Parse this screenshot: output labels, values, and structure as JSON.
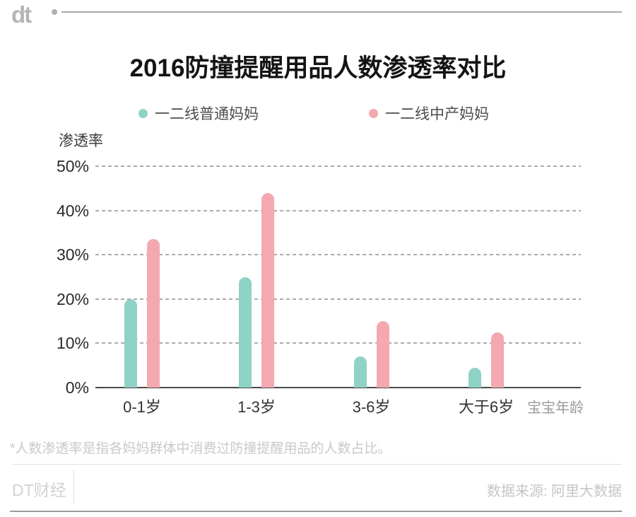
{
  "logo": {
    "text": "dt"
  },
  "title": "2016防撞提醒用品人数渗透率对比",
  "legend": [
    {
      "label": "一二线普通妈妈",
      "color": "#8fd2c6"
    },
    {
      "label": "一二线中产妈妈",
      "color": "#f4a8b0"
    }
  ],
  "chart_data": {
    "type": "bar",
    "title": "2016防撞提醒用品人数渗透率对比",
    "ylabel": "渗透率",
    "xlabel": "宝宝年龄",
    "categories": [
      "0-1岁",
      "1-3岁",
      "3-6岁",
      "大于6岁"
    ],
    "series": [
      {
        "name": "一二线普通妈妈",
        "color": "#8fd2c6",
        "values": [
          20,
          25,
          7,
          4.5
        ]
      },
      {
        "name": "一二线中产妈妈",
        "color": "#f4a8b0",
        "values": [
          33.5,
          44,
          15,
          12.5
        ]
      }
    ],
    "yticks": [
      "50%",
      "40%",
      "30%",
      "20%",
      "10%",
      "0%"
    ],
    "ytick_values": [
      50,
      40,
      30,
      20,
      10,
      0
    ],
    "ylim": [
      0,
      50
    ],
    "grid": "dashed-horizontal",
    "legend_position": "top"
  },
  "footnote": "*人数渗透率是指各妈妈群体中消费过防撞提醒用品的人数占比。",
  "footer": {
    "brand": "DT财经",
    "source": "数据来源: 阿里大数据"
  }
}
